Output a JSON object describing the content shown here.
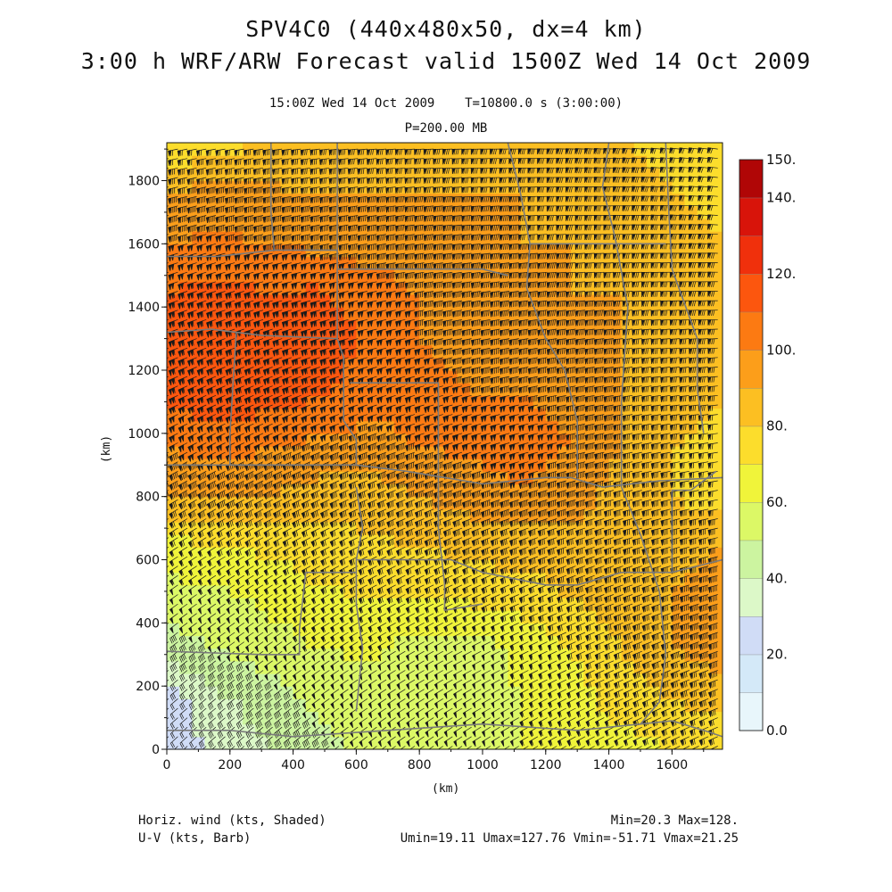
{
  "header": {
    "title_line1": "SPV4C0 (440x480x50, dx=4 km)",
    "title_line2": "3:00 h WRF/ARW Forecast valid 1500Z Wed 14 Oct 2009",
    "subtitle_line1": "15:00Z Wed 14 Oct 2009    T=10800.0 s (3:00:00)",
    "subtitle_line2": "P=200.00 MB"
  },
  "footer": {
    "left_line1": "Horiz. wind (kts, Shaded)",
    "left_line2": "U-V (kts, Barb)",
    "right_line1": "Min=20.3 Max=128.",
    "right_line2": "Umin=19.11 Umax=127.76 Vmin=-51.71 Vmax=21.25"
  },
  "chart_data": {
    "type": "heatmap",
    "xlabel": "(km)",
    "ylabel": "(km)",
    "xlim": [
      0,
      1760
    ],
    "ylim": [
      0,
      1920
    ],
    "x_ticks": [
      0,
      200,
      400,
      600,
      800,
      1000,
      1200,
      1400,
      1600
    ],
    "x_tick_labels": [
      "0",
      "200",
      "400",
      "600",
      "800",
      "1000",
      "1200",
      "1400",
      "1600"
    ],
    "y_ticks": [
      0,
      200,
      400,
      600,
      800,
      1000,
      1200,
      1400,
      1600,
      1800
    ],
    "y_tick_labels": [
      "0",
      "200",
      "400",
      "600",
      "800",
      "1000",
      "1200",
      "1400",
      "1600",
      "1800"
    ],
    "grid_x": [
      0,
      160,
      320,
      480,
      640,
      800,
      960,
      1120,
      1280,
      1440,
      1600,
      1760
    ],
    "grid_y": [
      1920,
      1760,
      1600,
      1440,
      1280,
      1120,
      960,
      800,
      640,
      480,
      320,
      160,
      0
    ],
    "values": [
      [
        70,
        75,
        80,
        80,
        82,
        85,
        85,
        85,
        85,
        80,
        75,
        70
      ],
      [
        90,
        95,
        92,
        90,
        90,
        90,
        90,
        90,
        88,
        85,
        80,
        75
      ],
      [
        100,
        102,
        100,
        98,
        95,
        95,
        92,
        90,
        90,
        88,
        85,
        80
      ],
      [
        110,
        115,
        110,
        112,
        105,
        100,
        95,
        92,
        90,
        90,
        88,
        85
      ],
      [
        115,
        120,
        115,
        118,
        108,
        100,
        98,
        95,
        92,
        90,
        88,
        85
      ],
      [
        112,
        118,
        115,
        110,
        105,
        105,
        100,
        100,
        98,
        90,
        85,
        80
      ],
      [
        100,
        105,
        100,
        98,
        95,
        100,
        102,
        105,
        100,
        90,
        80,
        75
      ],
      [
        90,
        92,
        90,
        85,
        85,
        90,
        95,
        98,
        95,
        85,
        80,
        75
      ],
      [
        65,
        70,
        72,
        75,
        78,
        80,
        82,
        85,
        85,
        85,
        85,
        90
      ],
      [
        55,
        58,
        62,
        68,
        70,
        70,
        72,
        75,
        80,
        85,
        90,
        95
      ],
      [
        45,
        50,
        55,
        60,
        62,
        55,
        55,
        62,
        70,
        80,
        90,
        95
      ],
      [
        25,
        38,
        45,
        52,
        55,
        50,
        55,
        60,
        65,
        75,
        80,
        85
      ],
      [
        25,
        30,
        40,
        48,
        52,
        50,
        55,
        60,
        60,
        65,
        70,
        70
      ]
    ],
    "colorbar": {
      "levels": [
        0,
        10,
        20,
        30,
        40,
        50,
        60,
        70,
        80,
        90,
        100,
        110,
        120,
        130,
        140,
        150
      ],
      "colors": [
        "#e8f6fb",
        "#d4e9f8",
        "#d0dcf6",
        "#dcf8c8",
        "#ccf4a0",
        "#dcf866",
        "#f0f43a",
        "#fcdd2c",
        "#fcbf22",
        "#fc9e1a",
        "#fc7a12",
        "#fc560e",
        "#f0300c",
        "#d8140a",
        "#b00606"
      ],
      "tick_labels": [
        "0.0",
        "20.",
        "40.",
        "60.",
        "80.",
        "100.",
        "120.",
        "140.",
        "150."
      ]
    },
    "barb_color": "#1a1a1a",
    "boundary_color": "#7a7a7a"
  }
}
